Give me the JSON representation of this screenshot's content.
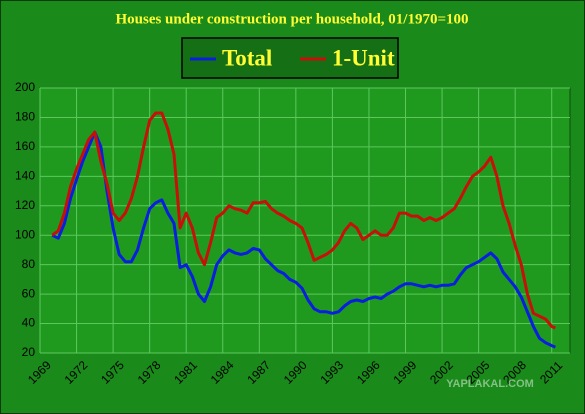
{
  "chart_data": {
    "type": "line",
    "title": "Houses under construction per household, 01/1970=100",
    "watermark": "YAPLAKAL.COM",
    "x": [
      1970,
      1970.5,
      1971,
      1971.5,
      1972,
      1972.5,
      1973,
      1973.5,
      1974,
      1974.5,
      1975,
      1975.5,
      1976,
      1976.5,
      1977,
      1977.5,
      1978,
      1978.5,
      1979,
      1979.5,
      1980,
      1980.5,
      1981,
      1981.5,
      1982,
      1982.5,
      1983,
      1983.5,
      1984,
      1984.5,
      1985,
      1985.5,
      1986,
      1986.5,
      1987,
      1987.5,
      1988,
      1988.5,
      1989,
      1989.5,
      1990,
      1990.5,
      1991,
      1991.5,
      1992,
      1992.5,
      1993,
      1993.5,
      1994,
      1994.5,
      1995,
      1995.5,
      1996,
      1996.5,
      1997,
      1997.5,
      1998,
      1998.5,
      1999,
      1999.5,
      2000,
      2000.5,
      2001,
      2001.5,
      2002,
      2002.5,
      2003,
      2003.5,
      2004,
      2004.5,
      2005,
      2005.5,
      2006,
      2006.5,
      2007,
      2007.5,
      2008,
      2008.5,
      2009,
      2009.5,
      2010,
      2010.5,
      2011,
      2011.3
    ],
    "series": [
      {
        "name": "Total",
        "color": "#0a1ee0",
        "values": [
          100,
          98,
          108,
          125,
          138,
          150,
          160,
          170,
          160,
          130,
          105,
          87,
          82,
          82,
          90,
          105,
          118,
          122,
          124,
          115,
          108,
          78,
          80,
          72,
          60,
          55,
          65,
          80,
          86,
          90,
          88,
          87,
          88,
          91,
          90,
          84,
          80,
          76,
          74,
          70,
          68,
          64,
          56,
          50,
          48,
          48,
          47,
          48,
          52,
          55,
          56,
          55,
          57,
          58,
          57,
          60,
          62,
          65,
          67,
          67,
          66,
          65,
          66,
          65,
          66,
          66,
          67,
          73,
          78,
          80,
          82,
          85,
          88,
          84,
          75,
          70,
          65,
          58,
          48,
          38,
          30,
          27,
          25,
          24
        ]
      },
      {
        "name": "1-Unit",
        "color": "#c8100a",
        "values": [
          100,
          103,
          115,
          133,
          145,
          155,
          165,
          170,
          150,
          135,
          115,
          110,
          115,
          125,
          140,
          160,
          178,
          183,
          183,
          172,
          155,
          105,
          115,
          105,
          88,
          80,
          95,
          112,
          115,
          120,
          118,
          117,
          115,
          122,
          122,
          123,
          118,
          115,
          113,
          110,
          108,
          105,
          95,
          83,
          85,
          87,
          90,
          95,
          103,
          108,
          105,
          97,
          100,
          103,
          100,
          100,
          105,
          115,
          115,
          113,
          113,
          110,
          112,
          110,
          112,
          115,
          118,
          125,
          133,
          140,
          143,
          147,
          153,
          140,
          120,
          108,
          93,
          80,
          60,
          47,
          45,
          43,
          38,
          37
        ]
      }
    ],
    "xlim": [
      1969,
      2012.5
    ],
    "xticks": [
      1969,
      1972,
      1975,
      1978,
      1981,
      1984,
      1987,
      1990,
      1993,
      1996,
      1999,
      2002,
      2005,
      2008,
      2011
    ],
    "ylim": [
      20,
      200
    ],
    "yticks": [
      20,
      40,
      60,
      80,
      100,
      120,
      140,
      160,
      180,
      200
    ],
    "grid": true
  }
}
